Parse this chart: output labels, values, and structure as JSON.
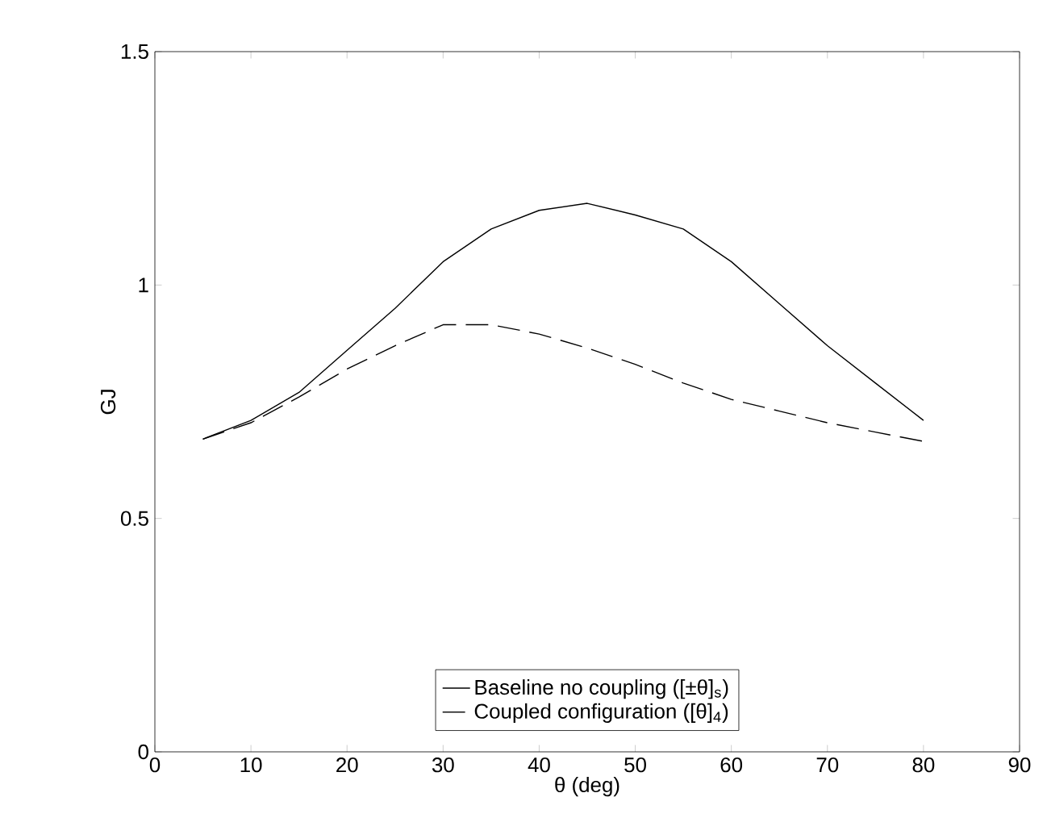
{
  "chart_data": {
    "type": "line",
    "xlabel": "θ (deg)",
    "ylabel": "GJ",
    "x": [
      5,
      10,
      15,
      20,
      25,
      30,
      35,
      40,
      45,
      50,
      55,
      60,
      65,
      70,
      75,
      80
    ],
    "series": [
      {
        "name": "Baseline no coupling ([±θ]$_{s}$)",
        "color": "#000000",
        "line_style": "solid",
        "values": [
          0.67,
          0.71,
          0.77,
          0.86,
          0.95,
          1.05,
          1.12,
          1.16,
          1.175,
          1.15,
          1.12,
          1.05,
          0.96,
          0.87,
          0.79,
          0.71
        ]
      },
      {
        "name": "Coupled configuration ([θ]$_{4}$)",
        "color": "#000000",
        "line_style": "dashed",
        "values": [
          0.67,
          0.705,
          0.76,
          0.82,
          0.87,
          0.915,
          0.915,
          0.895,
          0.865,
          0.83,
          0.79,
          0.755,
          0.73,
          0.705,
          0.685,
          0.665
        ]
      }
    ],
    "xlim": [
      0,
      90
    ],
    "ylim": [
      0,
      1.5
    ],
    "xticks": [
      0,
      10,
      20,
      30,
      40,
      50,
      60,
      70,
      80,
      90
    ],
    "yticks": [
      0,
      {
        "value": 0.5,
        "label": "0.5"
      },
      1,
      1.5
    ],
    "legend": "bottom",
    "grid": false
  }
}
